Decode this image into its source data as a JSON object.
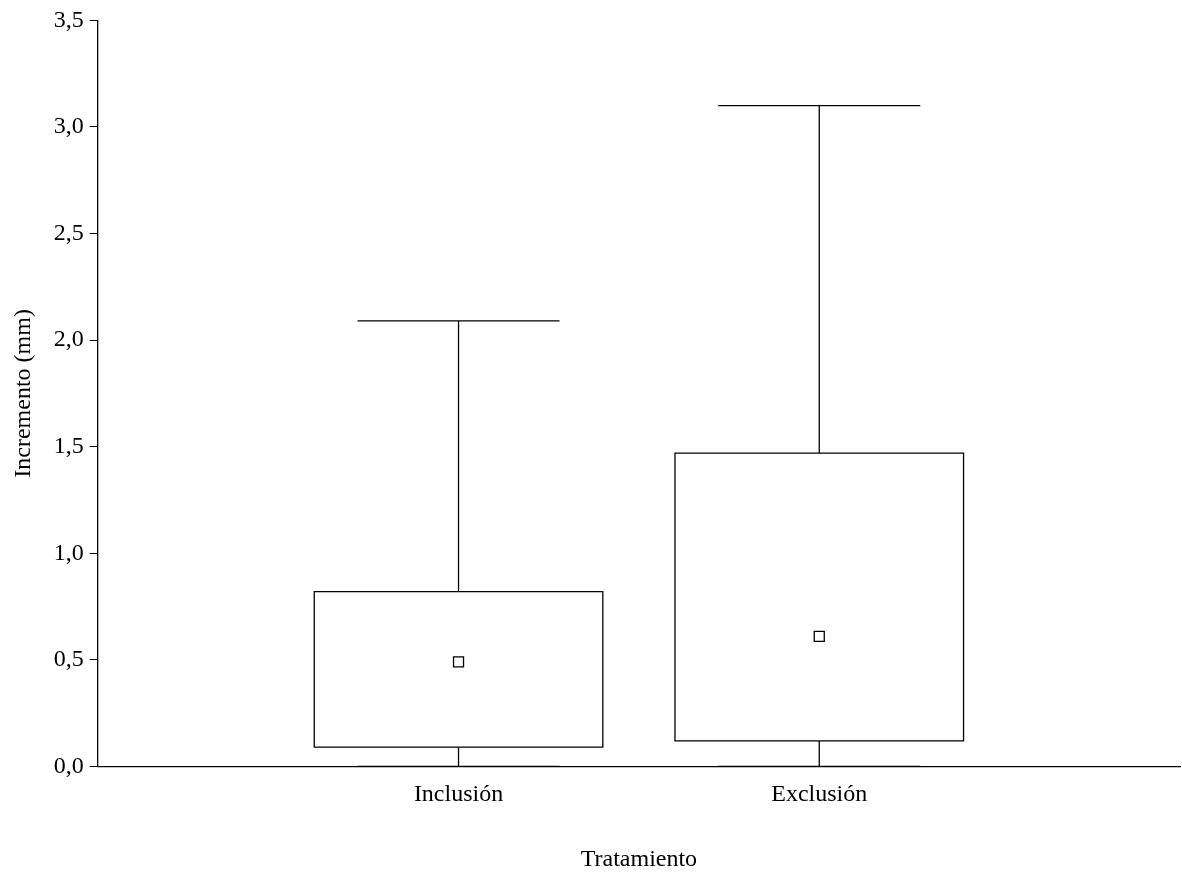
{
  "chart_data": {
    "type": "box",
    "xlabel": "Tratamiento",
    "ylabel": "Incremento (mm)",
    "categories": [
      "Inclusión",
      "Exclusión"
    ],
    "boxes": [
      {
        "low": 0,
        "q1": 0.09,
        "median": 0.49,
        "q3": 0.82,
        "high": 2.09
      },
      {
        "low": 0,
        "q1": 0.12,
        "median": 0.61,
        "q3": 1.47,
        "high": 3.1
      }
    ],
    "ylim": [
      0,
      3.5
    ],
    "yticks": [
      {
        "value": 0,
        "label": "0,0"
      },
      {
        "value": 0.5,
        "label": "0,5"
      },
      {
        "value": 1,
        "label": "1,0"
      },
      {
        "value": 1.5,
        "label": "1,5"
      },
      {
        "value": 2,
        "label": "2,0"
      },
      {
        "value": 2.5,
        "label": "2,5"
      },
      {
        "value": 3,
        "label": "3,0"
      },
      {
        "value": 3.5,
        "label": "3,5"
      }
    ],
    "grid": false,
    "legend": false
  }
}
